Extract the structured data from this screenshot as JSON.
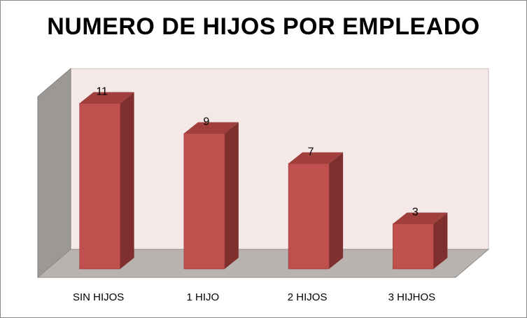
{
  "chart_data": {
    "type": "bar",
    "title": "NUMERO DE HIJOS POR EMPLEADO",
    "categories": [
      "SIN HIJOS",
      "1 HIJO",
      "2 HIJOS",
      "3 HIJHOS"
    ],
    "values": [
      11,
      9,
      7,
      3
    ],
    "xlabel": "",
    "ylabel": "",
    "ylim": [
      0,
      12
    ],
    "grid": false,
    "legend": "none",
    "colors": {
      "bar_front": "#c0504d",
      "bar_side": "#7f302e",
      "bar_top": "#a03f3c",
      "back_wall": "#f5e9e8",
      "side_wall": "#9c9896",
      "floor": "#b9b3b0"
    }
  }
}
